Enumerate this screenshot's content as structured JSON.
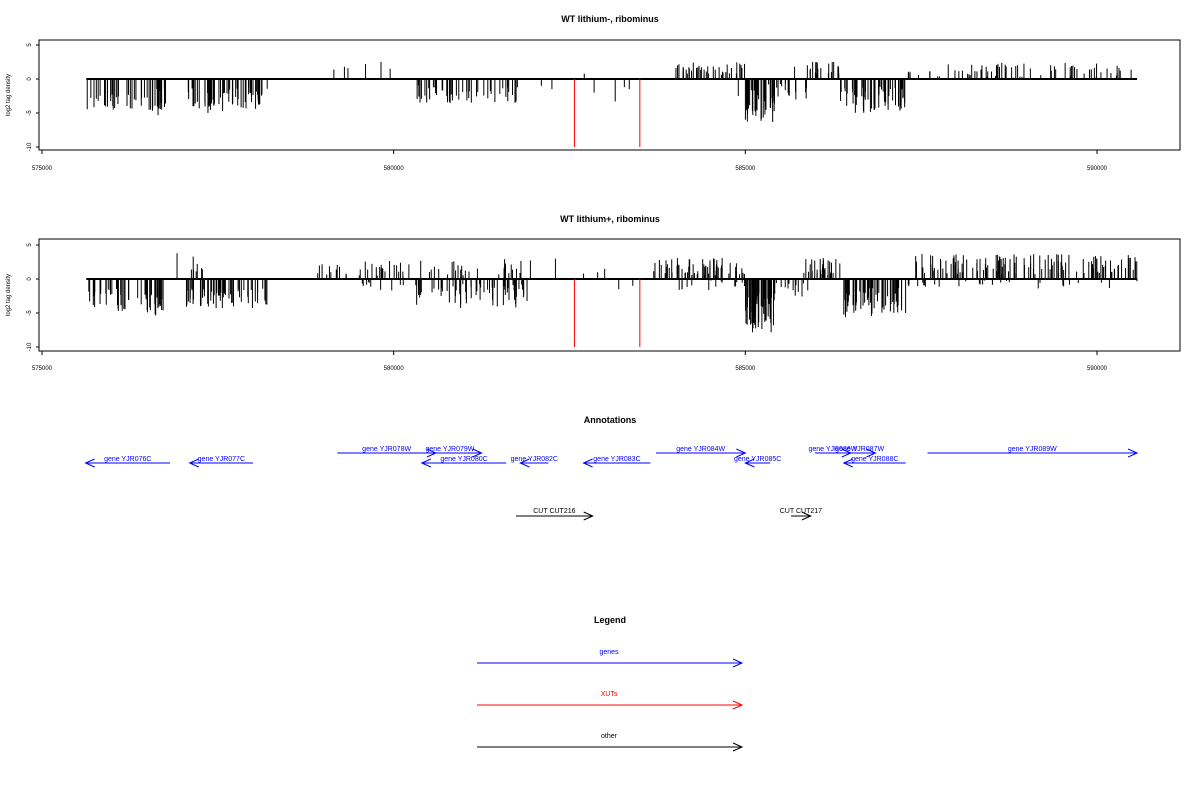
{
  "chart_data": [
    {
      "type": "bar",
      "title": "WT lithium-, ribominus",
      "ylabel": "log2 tag density",
      "xlim": [
        575000,
        590600
      ],
      "ylim": [
        -10,
        6
      ],
      "x_ticks": [
        "575000",
        "580000",
        "585000",
        "590000"
      ],
      "y_ticks": [
        "5",
        "0",
        "-5",
        "-10"
      ],
      "segments": [
        {
          "x0": 575630,
          "x1": 576760,
          "mean": -3.0,
          "amp": 1.6,
          "n": 45
        },
        {
          "x0": 576520,
          "x1": 576700,
          "mean": -4.4,
          "amp": 1.0,
          "n": 6
        },
        {
          "x0": 577050,
          "x1": 578210,
          "mean": -2.8,
          "amp": 1.6,
          "n": 55
        },
        {
          "x0": 577300,
          "x1": 577600,
          "mean": -4.2,
          "amp": 0.8,
          "n": 10
        },
        {
          "x0": 580330,
          "x1": 581010,
          "mean": -2.2,
          "amp": 1.4,
          "n": 26
        },
        {
          "x0": 581010,
          "x1": 581810,
          "mean": -2.4,
          "amp": 1.2,
          "n": 22
        },
        {
          "x0": 584000,
          "x1": 585000,
          "mean": 1.5,
          "amp": 1.0,
          "n": 40
        },
        {
          "x0": 585000,
          "x1": 585420,
          "mean": -4.0,
          "amp": 2.5,
          "n": 40
        },
        {
          "x0": 585420,
          "x1": 585880,
          "mean": -2.0,
          "amp": 1.5,
          "n": 14
        },
        {
          "x0": 585880,
          "x1": 586350,
          "mean": 1.5,
          "amp": 1.2,
          "n": 20
        },
        {
          "x0": 586350,
          "x1": 587280,
          "mean": -3.0,
          "amp": 2.0,
          "n": 60
        },
        {
          "x0": 587280,
          "x1": 587600,
          "mean": 0.5,
          "amp": 0.8,
          "n": 8
        },
        {
          "x0": 587600,
          "x1": 590570,
          "mean": 1.2,
          "amp": 1.2,
          "n": 75
        }
      ],
      "bars": [
        {
          "x": 579950,
          "y": 1.5
        },
        {
          "x": 579820,
          "y": 2.5
        },
        {
          "x": 579600,
          "y": 2.2
        },
        {
          "x": 579350,
          "y": 1.6
        },
        {
          "x": 579150,
          "y": 1.4
        },
        {
          "x": 579300,
          "y": 1.8
        },
        {
          "x": 582710,
          "y": 0.8
        },
        {
          "x": 582100,
          "y": -1.0
        },
        {
          "x": 582250,
          "y": -1.5
        },
        {
          "x": 582850,
          "y": -2.0
        },
        {
          "x": 583150,
          "y": -3.3
        },
        {
          "x": 583280,
          "y": -1.2
        },
        {
          "x": 583350,
          "y": -1.5
        },
        {
          "x": 584900,
          "y": -2.5
        },
        {
          "x": 585330,
          "y": -0.8
        },
        {
          "x": 585700,
          "y": 1.8
        }
      ],
      "xut_lines": [
        582570,
        583500
      ],
      "xut_depth": -10
    },
    {
      "type": "bar",
      "title": "WT lithium+, ribominus",
      "ylabel": "log2 tag density",
      "xlim": [
        575000,
        590600
      ],
      "ylim": [
        -10,
        6
      ],
      "x_ticks": [
        "575000",
        "580000",
        "585000",
        "590000"
      ],
      "y_ticks": [
        "5",
        "0",
        "-5",
        "-10"
      ],
      "segments": [
        {
          "x0": 575630,
          "x1": 576760,
          "mean": -3.2,
          "amp": 1.8,
          "n": 50
        },
        {
          "x0": 576580,
          "x1": 576700,
          "mean": -4.5,
          "amp": 1.0,
          "n": 5
        },
        {
          "x0": 577050,
          "x1": 578210,
          "mean": -2.8,
          "amp": 1.5,
          "n": 55
        },
        {
          "x0": 577080,
          "x1": 577300,
          "mean": 1.5,
          "amp": 0.8,
          "n": 6
        },
        {
          "x0": 578900,
          "x1": 580300,
          "mean": 1.6,
          "amp": 1.2,
          "n": 35
        },
        {
          "x0": 579500,
          "x1": 580300,
          "mean": -1.0,
          "amp": 0.8,
          "n": 10
        },
        {
          "x0": 580300,
          "x1": 581900,
          "mean": -2.5,
          "amp": 1.8,
          "n": 65
        },
        {
          "x0": 580300,
          "x1": 582000,
          "mean": 1.8,
          "amp": 1.3,
          "n": 28
        },
        {
          "x0": 583680,
          "x1": 585000,
          "mean": 1.8,
          "amp": 1.3,
          "n": 60
        },
        {
          "x0": 584000,
          "x1": 585000,
          "mean": -1.0,
          "amp": 0.8,
          "n": 15
        },
        {
          "x0": 585000,
          "x1": 585420,
          "mean": -5.0,
          "amp": 3.0,
          "n": 60
        },
        {
          "x0": 585420,
          "x1": 586000,
          "mean": -1.5,
          "amp": 1.2,
          "n": 12
        },
        {
          "x0": 585800,
          "x1": 586350,
          "mean": 1.8,
          "amp": 1.3,
          "n": 30
        },
        {
          "x0": 586350,
          "x1": 587280,
          "mean": -3.5,
          "amp": 2.2,
          "n": 70
        },
        {
          "x0": 587280,
          "x1": 587800,
          "mean": -1.0,
          "amp": 0.8,
          "n": 10
        },
        {
          "x0": 587400,
          "x1": 590570,
          "mean": 2.2,
          "amp": 1.5,
          "n": 130
        },
        {
          "x0": 588000,
          "x1": 590570,
          "mean": -0.8,
          "amp": 0.6,
          "n": 20
        }
      ],
      "bars": [
        {
          "x": 576920,
          "y": 3.8
        },
        {
          "x": 577150,
          "y": 3.3
        },
        {
          "x": 582300,
          "y": 3.0
        },
        {
          "x": 582700,
          "y": 0.8
        },
        {
          "x": 583200,
          "y": -1.5
        },
        {
          "x": 583400,
          "y": -1.0
        },
        {
          "x": 582900,
          "y": 1.0
        },
        {
          "x": 583000,
          "y": 1.5
        }
      ],
      "xut_lines": [
        582570,
        583500
      ],
      "xut_depth": -10
    }
  ],
  "annotations": {
    "title": "Annotations",
    "genes": [
      {
        "label": "gene YJR076C",
        "start": 575620,
        "end": 576820,
        "strand": "-",
        "row": 2
      },
      {
        "label": "gene YJR077C",
        "start": 577100,
        "end": 578000,
        "strand": "-",
        "row": 2
      },
      {
        "label": "gene YJR078W",
        "start": 579200,
        "end": 580600,
        "strand": "+",
        "row": 1
      },
      {
        "label": "gene YJR079W",
        "start": 580350,
        "end": 581250,
        "strand": "+",
        "row": 1
      },
      {
        "label": "gene YJR080C",
        "start": 580400,
        "end": 581600,
        "strand": "-",
        "row": 2
      },
      {
        "label": "gene YJR082C",
        "start": 581800,
        "end": 582200,
        "strand": "-",
        "row": 2
      },
      {
        "label": "gene YJR083C",
        "start": 582700,
        "end": 583650,
        "strand": "-",
        "row": 2
      },
      {
        "label": "gene YJR084W",
        "start": 583730,
        "end": 585000,
        "strand": "+",
        "row": 1
      },
      {
        "label": "gene YJR085C",
        "start": 585000,
        "end": 585350,
        "strand": "-",
        "row": 2
      },
      {
        "label": "gene YJR086W",
        "start": 585990,
        "end": 586500,
        "strand": "+",
        "row": 1
      },
      {
        "label": "gene YJR087W",
        "start": 586400,
        "end": 586850,
        "strand": "+",
        "row": 1
      },
      {
        "label": "gene YJR088C",
        "start": 586400,
        "end": 587280,
        "strand": "-",
        "row": 2
      },
      {
        "label": "gene YJR089W",
        "start": 587590,
        "end": 590570,
        "strand": "+",
        "row": 1
      }
    ],
    "others": [
      {
        "label": "CUT CUT216",
        "start": 581740,
        "end": 582830,
        "strand": "+"
      },
      {
        "label": "CUT CUT217",
        "start": 585650,
        "end": 585930,
        "strand": "+"
      }
    ]
  },
  "legend": {
    "title": "Legend",
    "items": [
      {
        "label": "genes",
        "color": "#0000ff"
      },
      {
        "label": "XUTs",
        "color": "#ff0000"
      },
      {
        "label": "other",
        "color": "#000000"
      }
    ]
  },
  "colors": {
    "gene": "#0000ff",
    "xut": "#ff0000",
    "other": "#000000",
    "density": "#000000"
  }
}
